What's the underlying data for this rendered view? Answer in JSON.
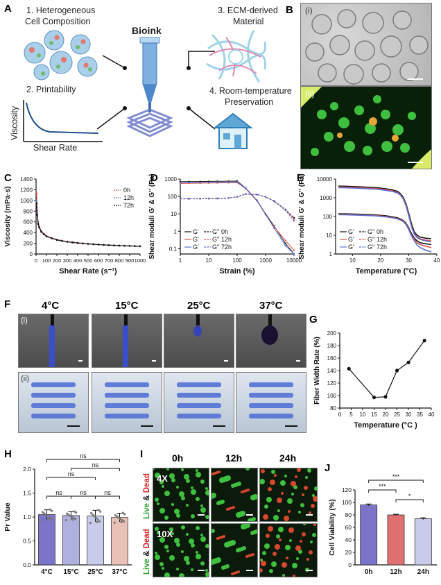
{
  "panels": {
    "A": "A",
    "B": "B",
    "C": "C",
    "D": "D",
    "E": "E",
    "F": "F",
    "G": "G",
    "H": "H",
    "I": "I",
    "J": "J"
  },
  "panel_a": {
    "item1": "1. Heterogeneous",
    "item1b": "Cell Composition",
    "item2": "2. Printability",
    "item3": "3. ECM-derived",
    "item3b": "Material",
    "item4": "4. Room-temperature",
    "item4b": "Preservation",
    "center_title": "Bioink",
    "plot_ylabel": "Viscosity",
    "plot_xlabel": "Shear Rate"
  },
  "panel_b": {
    "sub1": "(i)",
    "sub2": "(ii)"
  },
  "panel_f": {
    "temps": [
      "4°C",
      "15°C",
      "25°C",
      "37°C"
    ],
    "sub1": "(i)",
    "sub2": "(ii)"
  },
  "panel_i": {
    "times": [
      "0h",
      "12h",
      "24h"
    ],
    "mag1": "4X",
    "mag2": "10X",
    "live": "Live",
    "amp": "&",
    "dead": "Dead"
  },
  "chart_data": [
    {
      "id": "C",
      "type": "line",
      "xlabel": "Shear Rate  (s⁻¹)",
      "ylabel": "Viscosity (mPa·s)",
      "xlim": [
        0,
        1000
      ],
      "ylim": [
        0,
        1400
      ],
      "xticks": [
        "0",
        "100",
        "200",
        "300",
        "400",
        "500",
        "600",
        "700",
        "800",
        "900",
        "1000"
      ],
      "yticks": [
        "0",
        "200",
        "400",
        "600",
        "800",
        "1000",
        "1200",
        "1400"
      ],
      "x": [
        5,
        10,
        20,
        30,
        50,
        75,
        100,
        150,
        200,
        250,
        300,
        350,
        400,
        450,
        500,
        550,
        600,
        650,
        700,
        750,
        800,
        850,
        900,
        950,
        1000
      ],
      "series": [
        {
          "name": "0h",
          "color": "#d9534f",
          "values": [
            1150,
            820,
            600,
            520,
            430,
            380,
            340,
            300,
            270,
            250,
            232,
            220,
            210,
            200,
            192,
            185,
            178,
            172,
            167,
            163,
            158,
            155,
            152,
            149,
            146
          ]
        },
        {
          "name": "12h",
          "color": "#5b7fd6",
          "values": [
            1000,
            760,
            570,
            500,
            420,
            370,
            332,
            293,
            264,
            244,
            228,
            216,
            206,
            197,
            189,
            182,
            176,
            170,
            165,
            161,
            157,
            154,
            151,
            148,
            145
          ]
        },
        {
          "name": "72h",
          "color": "#111111",
          "values": [
            950,
            730,
            560,
            495,
            415,
            368,
            330,
            292,
            263,
            243,
            227,
            215,
            205,
            196,
            188,
            181,
            175,
            169,
            164,
            160,
            156,
            153,
            150,
            147,
            144
          ]
        }
      ],
      "legend": "top-right"
    },
    {
      "id": "D",
      "type": "line",
      "scale": "log-log",
      "xlabel": "Strain (%)",
      "ylabel": "Shear moduli G' & G'' (Pa)",
      "xlim": [
        1,
        10000
      ],
      "ylim": [
        0.05,
        1000
      ],
      "xticks": [
        "1",
        "10",
        "100",
        "1000",
        "10000"
      ],
      "yticks": [
        "0.1",
        "1",
        "10",
        "100",
        "1000"
      ],
      "x": [
        1,
        2,
        5,
        10,
        20,
        50,
        100,
        200,
        500,
        1000,
        2000,
        5000,
        10000
      ],
      "series": [
        {
          "name": "G' 0h",
          "color": "#111111",
          "values": [
            700,
            710,
            720,
            730,
            740,
            750,
            760,
            300,
            60,
            10,
            2,
            0.2,
            0.05
          ]
        },
        {
          "name": "G' 12h",
          "color": "#d9534f",
          "values": [
            560,
            570,
            580,
            590,
            600,
            610,
            620,
            280,
            55,
            9,
            1.8,
            0.3,
            0.08
          ]
        },
        {
          "name": "G' 72h",
          "color": "#5b6fd6",
          "values": [
            620,
            630,
            640,
            650,
            660,
            670,
            680,
            290,
            58,
            9.5,
            1.5,
            0.15,
            0.05
          ]
        },
        {
          "name": "G'' 0h",
          "color": "#111111",
          "values": [
            75,
            75,
            76,
            77,
            78,
            82,
            95,
            140,
            130,
            95,
            55,
            18,
            6
          ]
        },
        {
          "name": "G'' 12h",
          "color": "#d9534f",
          "values": [
            72,
            72,
            73,
            74,
            75,
            80,
            92,
            135,
            125,
            92,
            52,
            17,
            5
          ]
        },
        {
          "name": "G'' 72h",
          "color": "#5b6fd6",
          "values": [
            73,
            73,
            74,
            75,
            76,
            81,
            93,
            137,
            127,
            93,
            53,
            16,
            4
          ]
        }
      ],
      "legend": "bottom-left"
    },
    {
      "id": "E",
      "type": "line",
      "scale": "log-y",
      "xlabel": "Temperature (°C)",
      "ylabel": "Shear moduli G' & G'' (Pa)",
      "xlim": [
        4,
        40
      ],
      "ylim": [
        1,
        10000
      ],
      "xticks": [
        "10",
        "20",
        "30",
        "40"
      ],
      "yticks": [
        "1",
        "10",
        "100",
        "1000",
        "10000"
      ],
      "x": [
        5,
        8,
        10,
        12,
        15,
        18,
        20,
        22,
        24,
        26,
        27,
        28,
        29,
        30,
        31,
        32,
        33,
        34,
        36,
        38
      ],
      "series": [
        {
          "name": "G' 0h",
          "color": "#111111",
          "values": [
            4200,
            4100,
            4000,
            3900,
            3700,
            3500,
            3300,
            3000,
            2700,
            2200,
            1700,
            1100,
            500,
            150,
            40,
            15,
            10,
            8,
            7,
            6.5
          ]
        },
        {
          "name": "G' 12h",
          "color": "#d9534f",
          "values": [
            3800,
            3700,
            3600,
            3500,
            3350,
            3150,
            2950,
            2700,
            2400,
            1950,
            1500,
            950,
            420,
            120,
            30,
            12,
            8,
            6.5,
            5.5,
            5
          ]
        },
        {
          "name": "G' 72h",
          "color": "#5b6fd6",
          "values": [
            3500,
            3400,
            3300,
            3200,
            3050,
            2900,
            2700,
            2450,
            2200,
            1800,
            1400,
            880,
            380,
            110,
            28,
            11,
            7.5,
            6,
            5,
            4.5
          ]
        },
        {
          "name": "G'' 0h",
          "color": "#111111",
          "values": [
            140,
            138,
            136,
            133,
            128,
            122,
            116,
            108,
            98,
            85,
            75,
            62,
            45,
            25,
            12,
            7,
            5,
            4,
            3.5,
            3.2
          ]
        },
        {
          "name": "G'' 12h",
          "color": "#d9534f",
          "values": [
            130,
            128,
            126,
            123,
            118,
            113,
            107,
            100,
            90,
            78,
            69,
            57,
            41,
            22,
            10,
            6,
            4,
            3.2,
            2.6,
            2.2
          ]
        },
        {
          "name": "G'' 72h",
          "color": "#5b6fd6",
          "values": [
            125,
            123,
            121,
            118,
            113,
            108,
            102,
            95,
            86,
            74,
            65,
            54,
            38,
            20,
            9,
            5,
            3,
            2.2,
            1.6,
            1.3
          ]
        }
      ],
      "legend": "bottom-left"
    },
    {
      "id": "G",
      "type": "line",
      "xlabel": "Temperature (°C )",
      "ylabel": "Fiber Width Rate (%)",
      "xlim": [
        0,
        40
      ],
      "ylim": [
        80,
        200
      ],
      "xticks": [
        "0",
        "5",
        "10",
        "15",
        "20",
        "25",
        "30",
        "35",
        "40"
      ],
      "yticks": [
        "80",
        "100",
        "120",
        "140",
        "160",
        "180",
        "200"
      ],
      "x": [
        4,
        15,
        20,
        25,
        30,
        37
      ],
      "values": [
        143,
        97,
        98,
        140,
        153,
        188
      ]
    },
    {
      "id": "H",
      "type": "bar",
      "ylabel": "Pr Value",
      "categories": [
        "4°C",
        "15°C",
        "25°C",
        "37°C"
      ],
      "values": [
        1.05,
        1.03,
        1.02,
        0.99
      ],
      "errors": [
        0.1,
        0.08,
        0.12,
        0.09
      ],
      "colors": [
        "#7b74c9",
        "#aeb0e0",
        "#c9cbea",
        "#eac1b6"
      ],
      "ylim": [
        0,
        2.0
      ],
      "yticks": [
        "0.0",
        "0.5",
        "1.0",
        "1.5",
        "2.0"
      ],
      "significance": [
        "ns",
        "ns",
        "ns",
        "ns",
        "ns",
        "ns"
      ]
    },
    {
      "id": "J",
      "type": "bar",
      "ylabel": "Cell Viability (%)",
      "categories": [
        "0h",
        "12h",
        "24h"
      ],
      "values": [
        96,
        80,
        74
      ],
      "errors": [
        1.5,
        1,
        1.5
      ],
      "colors": [
        "#7b74c9",
        "#e07070",
        "#c9cbea"
      ],
      "ylim": [
        0,
        120
      ],
      "yticks": [
        "0",
        "20",
        "40",
        "60",
        "80",
        "100",
        "120"
      ],
      "significance": [
        "***",
        "***",
        "*"
      ]
    }
  ]
}
